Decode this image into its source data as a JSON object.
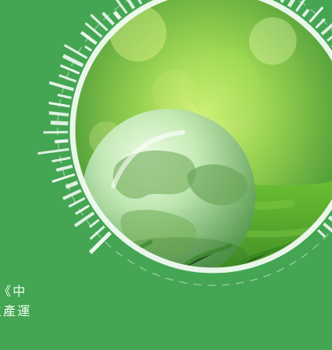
{
  "banner": {
    "text_lines": [
      "《中",
      "生產運"
    ]
  },
  "image": {
    "subject": "glass-globe-on-moss",
    "colors": {
      "background": "#44a552",
      "ring": "#f4fbf5",
      "bokeh_dark": "#2f7c2c",
      "bokeh_light": "#d6f07f",
      "moss": "#2f8a22",
      "globe": "#b9e3b0"
    }
  }
}
